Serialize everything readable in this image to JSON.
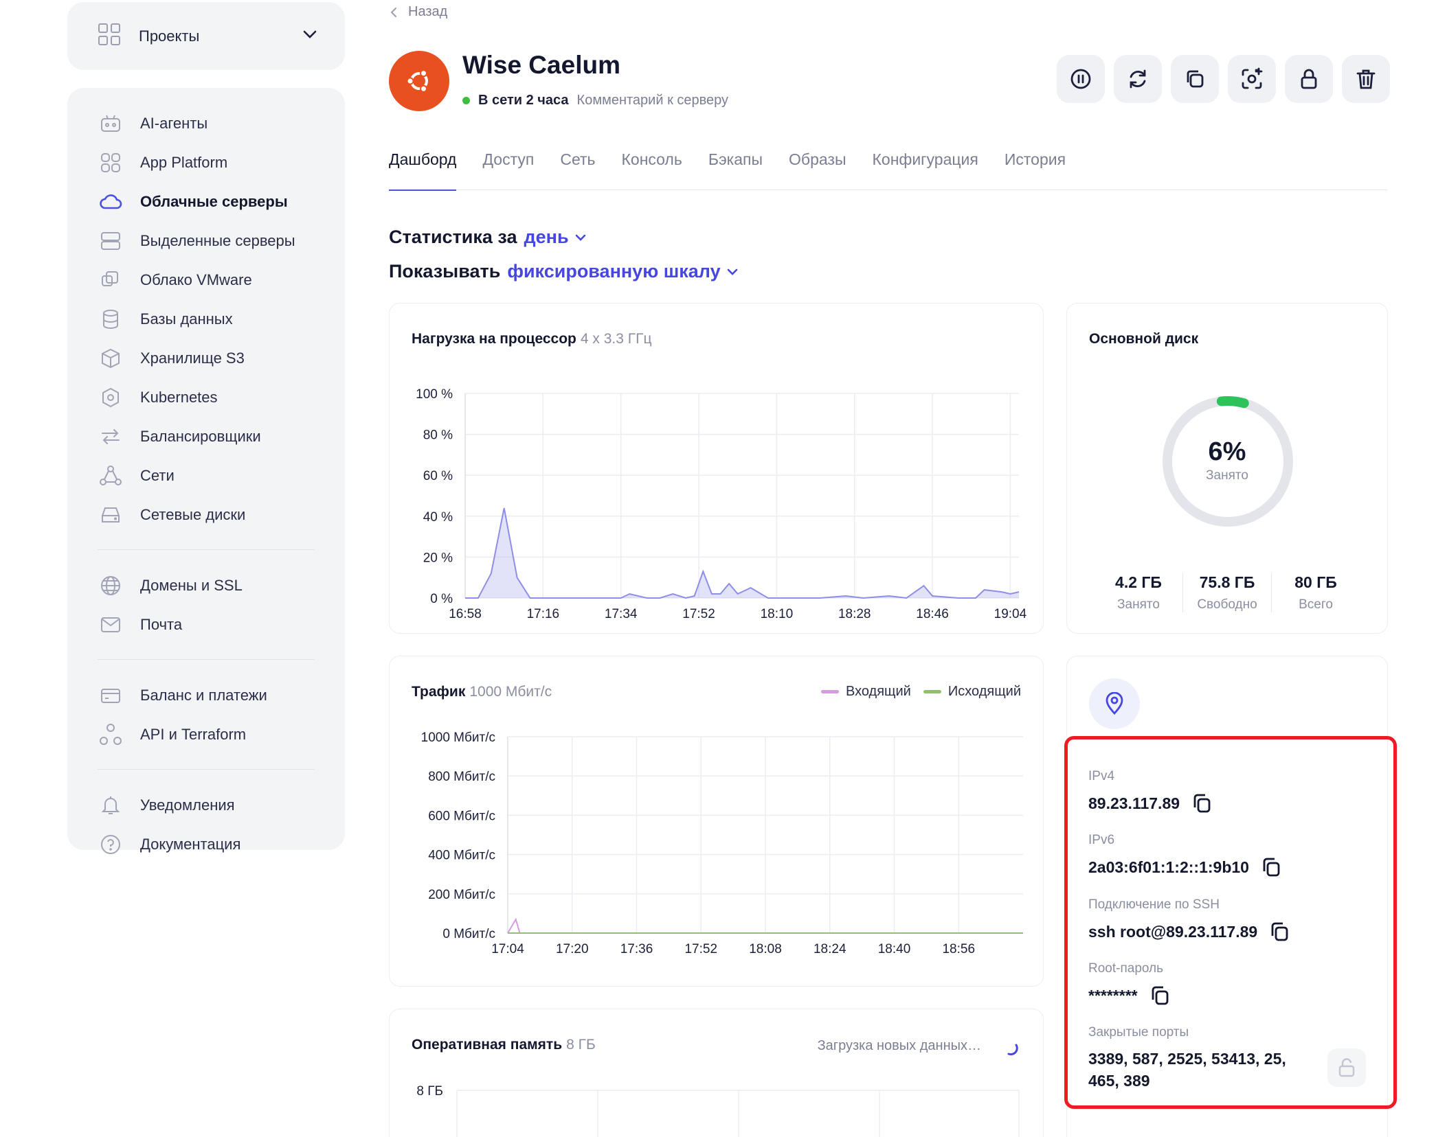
{
  "sidebar": {
    "projects_label": "Проекты",
    "items": [
      {
        "label": "AI-агенты",
        "icon": "robot-icon"
      },
      {
        "label": "App Platform",
        "icon": "apps-grid-icon"
      },
      {
        "label": "Облачные серверы",
        "icon": "cloud-icon",
        "active": true
      },
      {
        "label": "Выделенные серверы",
        "icon": "server-icon"
      },
      {
        "label": "Облако VMware",
        "icon": "vmware-icon"
      },
      {
        "label": "Базы данных",
        "icon": "database-icon"
      },
      {
        "label": "Хранилище S3",
        "icon": "cube-icon"
      },
      {
        "label": "Kubernetes",
        "icon": "kubernetes-icon"
      },
      {
        "label": "Балансировщики",
        "icon": "arrows-swap-icon"
      },
      {
        "label": "Сети",
        "icon": "network-icon"
      },
      {
        "label": "Сетевые диски",
        "icon": "disk-icon"
      }
    ],
    "items2": [
      {
        "label": "Домены и SSL",
        "icon": "globe-icon"
      },
      {
        "label": "Почта",
        "icon": "mail-icon"
      }
    ],
    "items3": [
      {
        "label": "Баланс и платежи",
        "icon": "card-icon"
      },
      {
        "label": "API и Terraform",
        "icon": "api-icon"
      }
    ],
    "items4": [
      {
        "label": "Уведомления",
        "icon": "bell-icon"
      },
      {
        "label": "Документация",
        "icon": "help-icon"
      }
    ]
  },
  "header": {
    "back_label": "Назад",
    "server_name": "Wise Caelum",
    "status": "В сети 2 часа",
    "comment_link": "Комментарий к серверу",
    "actions": [
      "pause-icon",
      "reboot-icon",
      "clone-icon",
      "snapshot-icon",
      "lock-icon",
      "trash-icon"
    ]
  },
  "tabs": [
    "Дашборд",
    "Доступ",
    "Сеть",
    "Консоль",
    "Бэкапы",
    "Образы",
    "Конфигурация",
    "История"
  ],
  "stats": {
    "period_prefix": "Статистика за",
    "period_value": "день",
    "scale_prefix": "Показывать",
    "scale_value": "фиксированную шкалу"
  },
  "cpu_card": {
    "title": "Нагрузка на процессор",
    "subtitle": "4 x 3.3 ГГц"
  },
  "traffic_card": {
    "title": "Трафик",
    "subtitle": "1000 Мбит/с",
    "legend_in": "Входящий",
    "legend_out": "Исходящий",
    "color_in": "#d79be0",
    "color_out": "#8fbf6f"
  },
  "ram_card": {
    "title": "Оперативная память",
    "subtitle": "8 ГБ",
    "loading": "Загрузка новых данных…",
    "first_tick": "8 ГБ"
  },
  "disk_card": {
    "title": "Основной диск",
    "percent_text": "6%",
    "percent": 6,
    "percent_label": "Занято",
    "used_value": "4.2 ГБ",
    "used_label": "Занято",
    "free_value": "75.8 ГБ",
    "free_label": "Свободно",
    "total_value": "80 ГБ",
    "total_label": "Всего"
  },
  "info_card": {
    "ipv4_label": "IPv4",
    "ipv4": "89.23.117.89",
    "ipv6_label": "IPv6",
    "ipv6": "2a03:6f01:1:2::1:9b10",
    "ssh_label": "Подключение по SSH",
    "ssh": "ssh root@89.23.117.89",
    "root_label": "Root-пароль",
    "root": "********",
    "ports_label": "Закрытые порты",
    "ports_line1": "3389, 587, 2525, 53413, 25,",
    "ports_line2": "465, 389"
  },
  "chart_data": [
    {
      "type": "area",
      "title": "Нагрузка на процессор",
      "ylim": [
        0,
        100
      ],
      "yticks": [
        "100 %",
        "80 %",
        "60 %",
        "40 %",
        "20 %",
        "0 %"
      ],
      "xticks": [
        "16:58",
        "17:16",
        "17:34",
        "17:52",
        "18:10",
        "18:28",
        "18:46",
        "19:04"
      ],
      "series": [
        {
          "color": "#8d8ee8",
          "x": [
            "16:58",
            "17:01",
            "17:04",
            "17:07",
            "17:10",
            "17:13",
            "17:18",
            "17:28",
            "17:34",
            "17:36",
            "17:40",
            "17:43",
            "17:46",
            "17:49",
            "17:51",
            "17:53",
            "17:55",
            "17:57",
            "17:59",
            "18:01",
            "18:04",
            "18:08",
            "18:14",
            "18:20",
            "18:26",
            "18:30",
            "18:36",
            "18:40",
            "18:44",
            "18:46",
            "18:52",
            "18:56",
            "18:58",
            "19:02",
            "19:04",
            "19:06"
          ],
          "values": [
            0,
            0,
            12,
            44,
            10,
            0,
            0,
            0,
            0,
            2,
            0,
            0,
            2,
            0,
            1,
            13,
            2,
            2,
            7,
            2,
            5,
            0,
            0,
            0,
            1,
            0,
            1,
            0,
            6,
            1,
            0,
            0,
            4,
            3,
            2,
            3
          ]
        }
      ]
    },
    {
      "type": "line",
      "title": "Трафик",
      "ylim": [
        0,
        1000
      ],
      "yticks": [
        "1000 Мбит/с",
        "800 Мбит/с",
        "600 Мбит/с",
        "400 Мбит/с",
        "200 Мбит/с",
        "0 Мбит/с"
      ],
      "xticks": [
        "17:04",
        "17:20",
        "17:36",
        "17:52",
        "18:08",
        "18:24",
        "18:40",
        "18:56"
      ],
      "series": [
        {
          "name": "Входящий",
          "color": "#d79be0",
          "x": [
            "17:04",
            "17:06",
            "17:07",
            "17:08",
            "19:12"
          ],
          "values": [
            0,
            70,
            0,
            0,
            0
          ]
        },
        {
          "name": "Исходящий",
          "color": "#8fbf6f",
          "x": [
            "17:04",
            "19:12"
          ],
          "values": [
            0,
            0
          ]
        }
      ]
    },
    {
      "type": "line",
      "title": "Оперативная память",
      "yticks": [
        "8 ГБ"
      ]
    }
  ]
}
